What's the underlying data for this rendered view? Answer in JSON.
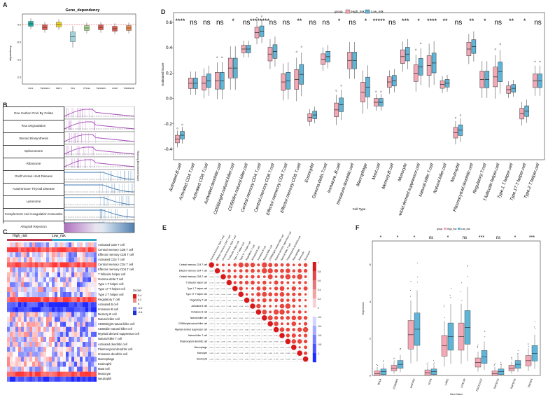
{
  "panels": {
    "A": "A",
    "B": "B",
    "C": "C",
    "D": "D",
    "E": "E",
    "F": "F"
  },
  "colors": {
    "high_risk": "#f4a7b5",
    "low_risk": "#5fb5d8",
    "heat_red": "#e41a1c",
    "heat_blue": "#1f2fd0"
  },
  "panel_a": {
    "title": "Gene_dependency",
    "ylabel": "dependency",
    "y_ticks": [
      "0.0",
      "-0.5",
      "-1.0",
      "-1.5"
    ],
    "genes": [
      "IDO1",
      "TNFRSF4",
      "NRP1",
      "PD1",
      "PTGS2",
      "TNFRSF9",
      "CD28",
      "TNFRSF18"
    ]
  },
  "panel_b": {
    "pathways": [
      "One Carbon Pool By Folate",
      "Rna Degradation",
      "Steroid Biosynthesis",
      "Spliceosome",
      "Ribosome",
      "Graft Versus Host Disease",
      "Autoimmune Thyroid Disease",
      "Lysosome",
      "Complement And Coagulation Cascades",
      "Allograft Rejection"
    ],
    "side_label": "Running Enrichment Score"
  },
  "panel_c": {
    "group_high": "High_risk",
    "group_low": "Low_risk",
    "legend_title": "Score",
    "legend_ticks": [
      "0.4",
      "0.2",
      "0",
      "-0.2",
      "-0.4"
    ],
    "rows": [
      "Activated CD8 T cell",
      "Central memory CD8 T cell",
      "Effector memory CD8 T cell",
      "Activated CD4 T cell",
      "Central memory CD4 T cell",
      "Effector memory CD4 T cell",
      "T follicular helper cell",
      "Gamma delta T cell",
      "Type 1 T helper cell",
      "Type 17 T helper cell",
      "Type 2 T helper cell",
      "Regulatory T cell",
      "Activated B cell",
      "Immature B cell",
      "Memory B cell",
      "Natural killer cell",
      "CD56bright natural killer cell",
      "CD56dim natural killer cell",
      "Myeloid derived suppressor cell",
      "Natural killer T cell",
      "Activated dendritic cell",
      "Plasmacytoid dendritic cell",
      "Immature dendritic cell",
      "Macrophage",
      "Eosinophil",
      "Mast cell",
      "Monocyte",
      "Neutrophil"
    ]
  },
  "chart_data": [
    {
      "type": "boxplot",
      "panel": "D",
      "title": "",
      "xlabel": "Cell Type",
      "ylabel": "Estimated Score",
      "ylim": [
        -0.45,
        0.62
      ],
      "y_ticks": [
        "0.6",
        "0.4",
        "0.2",
        "0.0",
        "-0.2",
        "-0.4"
      ],
      "legend": {
        "title": "group",
        "entries": [
          "High_risk",
          "Low_risk"
        ],
        "position": "top-right"
      },
      "categories": [
        "Activated.B.cell",
        "Activated.CD4.T.cell",
        "Activated.CD8.T.cell",
        "Activated.dendritic.cell",
        "CD56bright.natural.killer.cell",
        "CD56dim.natural.killer.cell",
        "Central.memory.CD4.T.cell",
        "Central.memory.CD8.T.cell",
        "Effector.memeory.CD4.T.cell",
        "Effector.memory.CD8.T.cell",
        "Eosinophil",
        "Gamma.delta.T.cell",
        "Immature..B.cell",
        "Immature.dendritic.cell",
        "Macrophage",
        "Mast.cell",
        "Memory.B.cell",
        "Monocyte",
        "Myeloid.derived.suppressor.cell",
        "Natural.killer.T.cell",
        "Natural.killer.cell",
        "Neutrophil",
        "Plasmacytoid.dendritic.cell",
        "Regulatory.T.cell",
        "T.follicular.helper.cell",
        "Type.1.T.helper.cell",
        "Type.17.T.helper.cell",
        "Type.2.T.helper.cell"
      ],
      "significance": [
        "****",
        "ns",
        "ns",
        "ns",
        "*",
        "ns",
        "********",
        "ns",
        "ns",
        "**",
        "ns",
        "ns",
        "*",
        "ns",
        "*",
        "*****",
        "ns",
        "***",
        "*",
        "****",
        "**",
        "ns",
        "**",
        "*",
        "ns",
        "**",
        "*",
        "ns"
      ],
      "series": [
        {
          "name": "High_risk",
          "median": [
            -0.32,
            0.12,
            0.12,
            0.14,
            0.24,
            0.39,
            0.52,
            0.35,
            0.13,
            0.15,
            -0.15,
            0.31,
            -0.09,
            0.3,
            0.05,
            -0.03,
            0.13,
            0.33,
            0.2,
            0.26,
            0.11,
            -0.27,
            0.39,
            0.15,
            0.17,
            0.07,
            -0.12,
            0.14
          ]
        },
        {
          "name": "Low_risk",
          "median": [
            -0.29,
            0.12,
            0.14,
            0.14,
            0.24,
            0.39,
            0.53,
            0.37,
            0.14,
            0.19,
            -0.13,
            0.33,
            -0.05,
            0.3,
            0.09,
            -0.03,
            0.14,
            0.35,
            0.25,
            0.28,
            0.12,
            -0.25,
            0.41,
            0.15,
            0.21,
            0.08,
            -0.1,
            0.14
          ]
        }
      ]
    },
    {
      "type": "heatmap",
      "panel": "E",
      "title": "",
      "legend_ticks": [
        "1",
        "0.8",
        "0.6",
        "0.4",
        "0.2",
        "0",
        "-0.2",
        "-0.4",
        "-0.6",
        "-0.8",
        "-1"
      ],
      "rows": [
        "Central memory CD4 T cell",
        "Effector memory CD4 T cell",
        "Central memory CD8 T cell",
        "T follicular helper cell",
        "Type 1 T helper cell",
        "Type 17 T helper cell",
        "Regulatory T cell",
        "Activated B cell",
        "Immature B cell",
        "Natural killer cell",
        "CD56bright natural killer cell",
        "Myeloid derived suppressor cell",
        "Natural killer T cell",
        "Plasmacytoid dendritic cell",
        "Macrophage",
        "Monocyte",
        "Neutrophil"
      ],
      "columns": [
        "Central memory CD4 T cell",
        "Effector memory CD4 T cell",
        "Central memory CD8 T cell",
        "T follicular helper cell",
        "Type 1 T helper cell",
        "Type 17 T helper cell",
        "Regulatory T cell",
        "Activated B cell",
        "Immature B cell",
        "Natural killer cell",
        "CD56bright natural killer cell",
        "Myeloid derived suppressor cell",
        "Natural killer T cell",
        "Plasmacytoid dendritic cell",
        "Macrophage",
        "Monocyte",
        "Neutrophil"
      ]
    },
    {
      "type": "boxplot",
      "panel": "F",
      "xlabel": "Gene Name",
      "ylabel": "Expression",
      "y_ticks": [
        "6",
        "4",
        "2",
        "0"
      ],
      "legend": {
        "title": "group",
        "entries": [
          "High_risk",
          "Low_risk"
        ],
        "position": "top"
      },
      "categories": [
        "BTLA",
        "CD200R1",
        "HAVCR2",
        "ICOS",
        "LAIR1",
        "LGALS9",
        "PDCD1LG2",
        "TNFSF14",
        "TNFSF15",
        "TNFSF4"
      ],
      "significance": [
        "*",
        "*",
        "*",
        "ns",
        "*",
        "ns",
        "***",
        "ns",
        "*",
        "***"
      ],
      "series": [
        {
          "name": "High_risk",
          "median": [
            0.1,
            0.4,
            2.2,
            0.15,
            1.6,
            2.1,
            0.7,
            0.1,
            0.4,
            0.8
          ]
        },
        {
          "name": "Low_risk",
          "median": [
            0.2,
            0.6,
            2.5,
            0.2,
            2.1,
            2.6,
            1.0,
            0.2,
            0.6,
            1.2
          ]
        }
      ]
    }
  ]
}
